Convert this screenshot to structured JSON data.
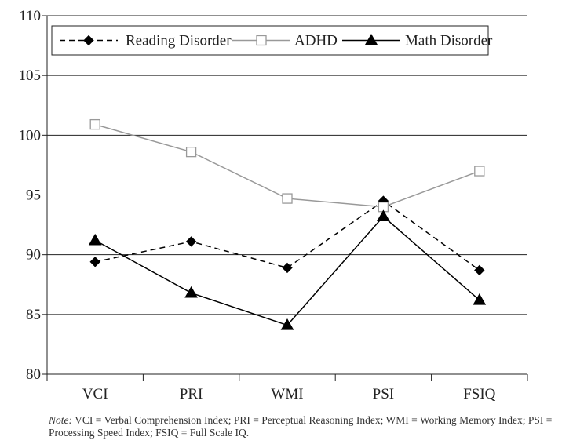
{
  "chart_data": {
    "type": "line",
    "categories": [
      "VCI",
      "PRI",
      "WMI",
      "PSI",
      "FSIQ"
    ],
    "ylim": [
      80,
      110
    ],
    "yticks": [
      80,
      85,
      90,
      95,
      100,
      105,
      110
    ],
    "grid": "horizontal",
    "legend_position": "top-left",
    "series": [
      {
        "name": "Reading Disorder",
        "values": [
          89.4,
          91.1,
          88.9,
          94.5,
          88.7
        ],
        "color": "#000000",
        "line_style": "dashed",
        "marker": "diamond-filled"
      },
      {
        "name": "ADHD",
        "values": [
          100.9,
          98.6,
          94.7,
          94.0,
          97.0
        ],
        "color": "#999999",
        "line_style": "solid",
        "marker": "square-open"
      },
      {
        "name": "Math Disorder",
        "values": [
          91.2,
          86.8,
          84.1,
          93.2,
          86.2
        ],
        "color": "#000000",
        "line_style": "solid",
        "marker": "triangle-filled"
      }
    ]
  },
  "note": {
    "label": "Note:",
    "text": " VCI = Verbal Comprehension Index; PRI = Perceptual Reasoning Index; WMI = Working Memory Index; PSI = Processing Speed Index; FSIQ = Full Scale IQ."
  }
}
